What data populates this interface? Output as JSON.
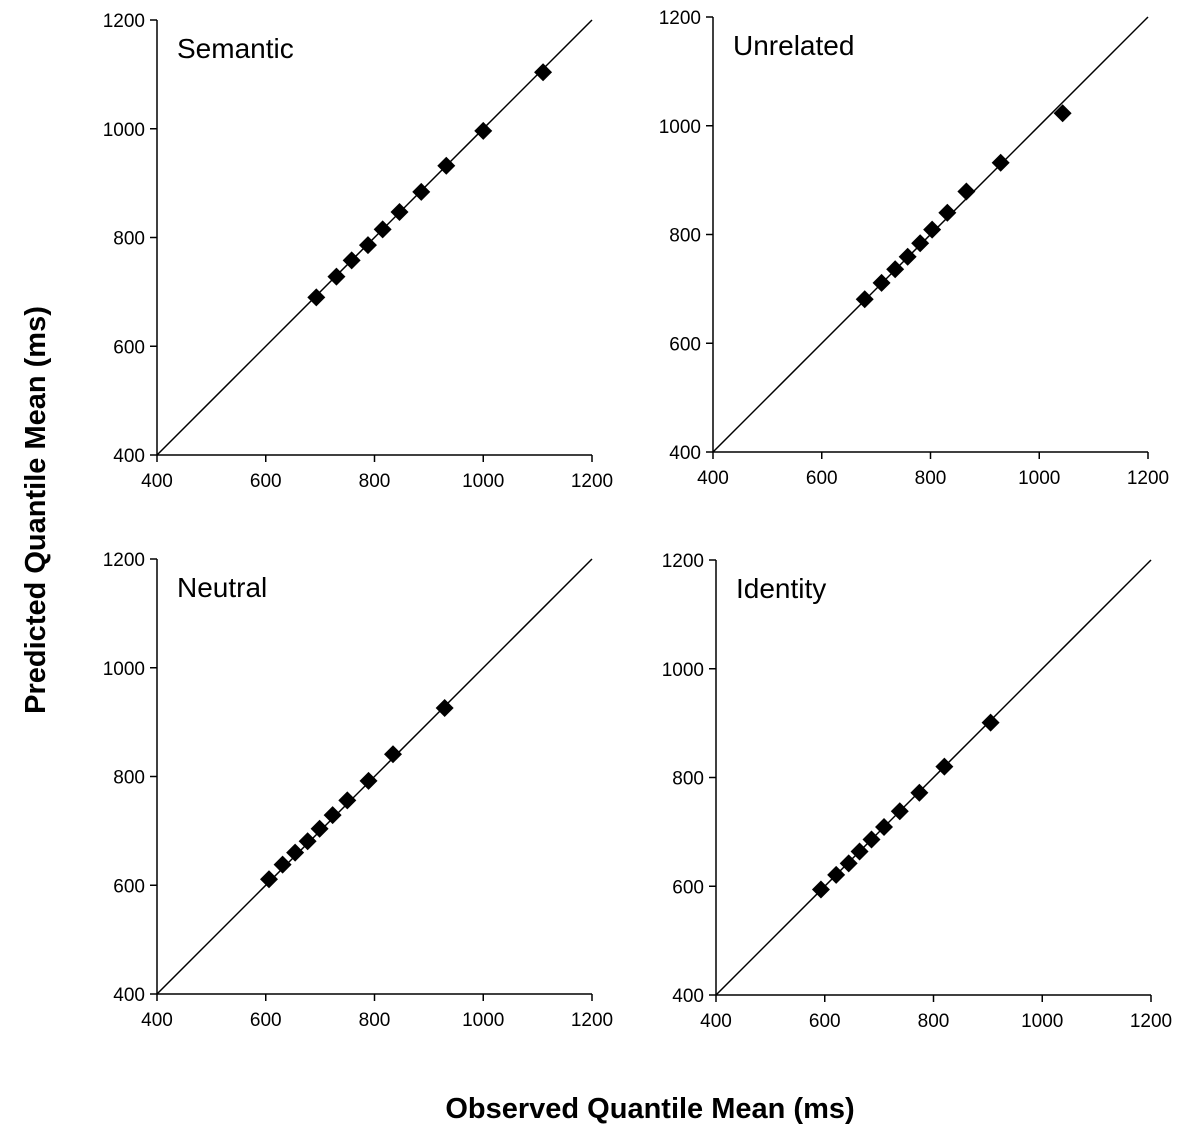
{
  "figure": {
    "ylabel": "Predicted Quantile Mean (ms)",
    "xlabel": "Observed Quantile Mean (ms)"
  },
  "chart_data": [
    {
      "type": "scatter",
      "panel_label": "Semantic",
      "xlim": [
        400,
        1200
      ],
      "ylim": [
        400,
        1200
      ],
      "xticks": [
        400,
        600,
        800,
        1000,
        1200
      ],
      "yticks": [
        400,
        600,
        800,
        1000,
        1200
      ],
      "reference_line": "y = x",
      "marker": "diamond",
      "x": [
        693,
        730,
        758,
        788,
        815,
        846,
        886,
        932,
        1000,
        1110
      ],
      "y": [
        690,
        728,
        758,
        786,
        815,
        847,
        884,
        932,
        996,
        1104
      ]
    },
    {
      "type": "scatter",
      "panel_label": "Unrelated",
      "xlim": [
        400,
        1200
      ],
      "ylim": [
        400,
        1200
      ],
      "xticks": [
        400,
        600,
        800,
        1000,
        1200
      ],
      "yticks": [
        400,
        600,
        800,
        1000,
        1200
      ],
      "reference_line": "y = x",
      "marker": "diamond",
      "x": [
        679,
        710,
        735,
        758,
        781,
        803,
        831,
        866,
        929,
        1043
      ],
      "y": [
        681,
        711,
        736,
        759,
        784,
        809,
        840,
        879,
        932,
        1023
      ]
    },
    {
      "type": "scatter",
      "panel_label": "Neutral",
      "xlim": [
        400,
        1200
      ],
      "ylim": [
        400,
        1200
      ],
      "xticks": [
        400,
        600,
        800,
        1000,
        1200
      ],
      "yticks": [
        400,
        600,
        800,
        1000,
        1200
      ],
      "reference_line": "y = x",
      "marker": "diamond",
      "x": [
        606,
        631,
        654,
        677,
        699,
        723,
        750,
        789,
        834,
        929
      ],
      "y": [
        611,
        638,
        660,
        681,
        704,
        729,
        756,
        792,
        841,
        926
      ]
    },
    {
      "type": "scatter",
      "panel_label": "Identity",
      "xlim": [
        400,
        1200
      ],
      "ylim": [
        400,
        1200
      ],
      "xticks": [
        400,
        600,
        800,
        1000,
        1200
      ],
      "yticks": [
        400,
        600,
        800,
        1000,
        1200
      ],
      "reference_line": "y = x",
      "marker": "diamond",
      "x": [
        593,
        621,
        644,
        664,
        686,
        709,
        738,
        774,
        820,
        905
      ],
      "y": [
        594,
        621,
        642,
        664,
        686,
        709,
        738,
        772,
        820,
        901
      ]
    }
  ]
}
